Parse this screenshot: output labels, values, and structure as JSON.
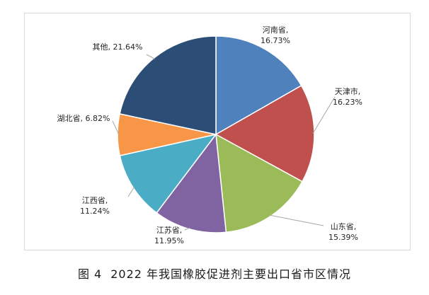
{
  "caption": {
    "figure_number": "图 4",
    "text": "2022 年我国橡胶促进剂主要出口省市区情况"
  },
  "chart_data": {
    "type": "pie",
    "title": "",
    "slices": [
      {
        "name": "河南省",
        "value": 16.73,
        "label": "16.73%",
        "color": "#4f81bd"
      },
      {
        "name": "天津市",
        "value": 16.23,
        "label": "16.23%",
        "color": "#c0504d"
      },
      {
        "name": "山东省",
        "value": 15.39,
        "label": "15.39%",
        "color": "#9bbb59"
      },
      {
        "name": "江苏省",
        "value": 11.95,
        "label": "11.95%",
        "color": "#8064a2"
      },
      {
        "name": "江西省",
        "value": 11.24,
        "label": "11.24%",
        "color": "#4bacc6"
      },
      {
        "name": "湖北省",
        "value": 6.82,
        "label": "6.82%",
        "color": "#f79646"
      },
      {
        "name": "其他",
        "value": 21.64,
        "label": "21.64%",
        "color": "#2c4d75"
      }
    ],
    "start_angle": "12 o'clock",
    "direction": "clockwise",
    "legend": "none",
    "slice_border_color": "#ffffff"
  }
}
